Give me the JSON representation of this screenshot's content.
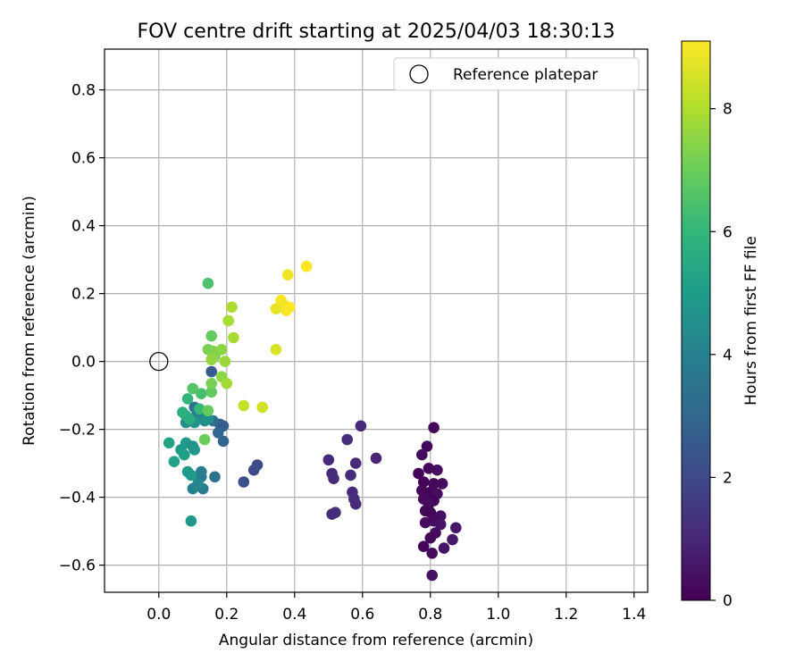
{
  "chart_data": {
    "type": "scatter",
    "title": "FOV centre drift starting at 2025/04/03 18:30:13",
    "xlabel": "Angular distance from reference (arcmin)",
    "ylabel": "Rotation from reference (arcmin)",
    "xlim": [
      -0.16,
      1.44
    ],
    "ylim": [
      -0.68,
      0.92
    ],
    "xticks": [
      0.0,
      0.2,
      0.4,
      0.6,
      0.8,
      1.0,
      1.2,
      1.4
    ],
    "xtick_labels": [
      "0.0",
      "0.2",
      "0.4",
      "0.6",
      "0.8",
      "1.0",
      "1.2",
      "1.4"
    ],
    "yticks": [
      -0.6,
      -0.4,
      -0.2,
      0.0,
      0.2,
      0.4,
      0.6,
      0.8
    ],
    "ytick_labels": [
      "−0.6",
      "−0.4",
      "−0.2",
      "0.0",
      "0.2",
      "0.4",
      "0.6",
      "0.8"
    ],
    "grid": true,
    "legend": {
      "placement": "top-right",
      "label": "Reference platepar"
    },
    "reference": {
      "x": 0.0,
      "y": 0.0
    },
    "colorbar": {
      "label": "Hours from first FF file",
      "colormap": "viridis",
      "range": [
        0,
        9.1
      ],
      "ticks": [
        0,
        2,
        4,
        6,
        8
      ],
      "tick_labels": [
        "0",
        "2",
        "4",
        "6",
        "8"
      ]
    },
    "points": [
      {
        "x": 0.81,
        "y": -0.195,
        "t": 0.2
      },
      {
        "x": 0.79,
        "y": -0.25,
        "t": 0.2
      },
      {
        "x": 0.775,
        "y": -0.275,
        "t": 0.3
      },
      {
        "x": 0.765,
        "y": -0.33,
        "t": 0.1
      },
      {
        "x": 0.795,
        "y": -0.315,
        "t": 0.2
      },
      {
        "x": 0.82,
        "y": -0.32,
        "t": 0.3
      },
      {
        "x": 0.78,
        "y": -0.355,
        "t": 0.1
      },
      {
        "x": 0.81,
        "y": -0.36,
        "t": 0.2
      },
      {
        "x": 0.835,
        "y": -0.36,
        "t": 0.3
      },
      {
        "x": 0.775,
        "y": -0.38,
        "t": 0.2
      },
      {
        "x": 0.8,
        "y": -0.385,
        "t": 0.1
      },
      {
        "x": 0.82,
        "y": -0.39,
        "t": 0.3
      },
      {
        "x": 0.78,
        "y": -0.405,
        "t": 0.2
      },
      {
        "x": 0.81,
        "y": -0.41,
        "t": 0.1
      },
      {
        "x": 0.795,
        "y": -0.42,
        "t": 0.3
      },
      {
        "x": 0.785,
        "y": -0.44,
        "t": 0.2
      },
      {
        "x": 0.8,
        "y": -0.445,
        "t": 0.1
      },
      {
        "x": 0.83,
        "y": -0.455,
        "t": 0.4
      },
      {
        "x": 0.785,
        "y": -0.475,
        "t": 0.3
      },
      {
        "x": 0.81,
        "y": -0.47,
        "t": 0.2
      },
      {
        "x": 0.83,
        "y": -0.48,
        "t": 0.5
      },
      {
        "x": 0.815,
        "y": -0.505,
        "t": 0.3
      },
      {
        "x": 0.875,
        "y": -0.49,
        "t": 0.6
      },
      {
        "x": 0.8,
        "y": -0.52,
        "t": 0.2
      },
      {
        "x": 0.865,
        "y": -0.525,
        "t": 0.6
      },
      {
        "x": 0.78,
        "y": -0.545,
        "t": 0.1
      },
      {
        "x": 0.84,
        "y": -0.55,
        "t": 0.5
      },
      {
        "x": 0.805,
        "y": -0.565,
        "t": 0.2
      },
      {
        "x": 0.805,
        "y": -0.63,
        "t": 0.4
      },
      {
        "x": 0.595,
        "y": -0.19,
        "t": 1.0
      },
      {
        "x": 0.555,
        "y": -0.23,
        "t": 1.2
      },
      {
        "x": 0.64,
        "y": -0.285,
        "t": 0.9
      },
      {
        "x": 0.5,
        "y": -0.29,
        "t": 1.0
      },
      {
        "x": 0.58,
        "y": -0.3,
        "t": 1.1
      },
      {
        "x": 0.51,
        "y": -0.33,
        "t": 1.0
      },
      {
        "x": 0.565,
        "y": -0.335,
        "t": 1.2
      },
      {
        "x": 0.515,
        "y": -0.345,
        "t": 1.1
      },
      {
        "x": 0.57,
        "y": -0.385,
        "t": 1.0
      },
      {
        "x": 0.575,
        "y": -0.405,
        "t": 1.2
      },
      {
        "x": 0.58,
        "y": -0.42,
        "t": 1.1
      },
      {
        "x": 0.52,
        "y": -0.445,
        "t": 1.3
      },
      {
        "x": 0.51,
        "y": -0.45,
        "t": 1.2
      },
      {
        "x": 0.29,
        "y": -0.305,
        "t": 2.0
      },
      {
        "x": 0.28,
        "y": -0.32,
        "t": 2.1
      },
      {
        "x": 0.25,
        "y": -0.355,
        "t": 2.2
      },
      {
        "x": 0.155,
        "y": -0.03,
        "t": 2.6
      },
      {
        "x": 0.18,
        "y": -0.185,
        "t": 2.8
      },
      {
        "x": 0.19,
        "y": -0.19,
        "t": 2.7
      },
      {
        "x": 0.175,
        "y": -0.21,
        "t": 3.0
      },
      {
        "x": 0.19,
        "y": -0.235,
        "t": 2.9
      },
      {
        "x": 0.16,
        "y": -0.175,
        "t": 3.3
      },
      {
        "x": 0.165,
        "y": -0.34,
        "t": 3.4
      },
      {
        "x": 0.125,
        "y": -0.34,
        "t": 3.6
      },
      {
        "x": 0.125,
        "y": -0.325,
        "t": 3.8
      },
      {
        "x": 0.13,
        "y": -0.375,
        "t": 3.7
      },
      {
        "x": 0.1,
        "y": -0.375,
        "t": 4.0
      },
      {
        "x": 0.115,
        "y": -0.36,
        "t": 4.2
      },
      {
        "x": 0.105,
        "y": -0.135,
        "t": 3.5
      },
      {
        "x": 0.11,
        "y": -0.16,
        "t": 3.9
      },
      {
        "x": 0.12,
        "y": -0.165,
        "t": 4.1
      },
      {
        "x": 0.135,
        "y": -0.175,
        "t": 4.4
      },
      {
        "x": 0.145,
        "y": -0.17,
        "t": 4.6
      },
      {
        "x": 0.095,
        "y": -0.47,
        "t": 4.8
      },
      {
        "x": 0.08,
        "y": -0.18,
        "t": 4.5
      },
      {
        "x": 0.105,
        "y": -0.18,
        "t": 4.7
      },
      {
        "x": 0.08,
        "y": -0.24,
        "t": 4.9
      },
      {
        "x": 0.1,
        "y": -0.25,
        "t": 4.6
      },
      {
        "x": 0.105,
        "y": -0.26,
        "t": 4.8
      },
      {
        "x": 0.065,
        "y": -0.26,
        "t": 5.0
      },
      {
        "x": 0.075,
        "y": -0.275,
        "t": 5.1
      },
      {
        "x": 0.045,
        "y": -0.295,
        "t": 5.2
      },
      {
        "x": 0.085,
        "y": -0.325,
        "t": 5.0
      },
      {
        "x": 0.095,
        "y": -0.335,
        "t": 4.9
      },
      {
        "x": 0.03,
        "y": -0.24,
        "t": 5.3
      },
      {
        "x": 0.08,
        "y": -0.16,
        "t": 5.5
      },
      {
        "x": 0.09,
        "y": -0.17,
        "t": 5.6
      },
      {
        "x": 0.07,
        "y": -0.15,
        "t": 5.7
      },
      {
        "x": 0.12,
        "y": -0.14,
        "t": 6.1
      },
      {
        "x": 0.085,
        "y": -0.11,
        "t": 6.0
      },
      {
        "x": 0.125,
        "y": -0.095,
        "t": 6.4
      },
      {
        "x": 0.1,
        "y": -0.08,
        "t": 6.6
      },
      {
        "x": 0.155,
        "y": -0.09,
        "t": 6.8
      },
      {
        "x": 0.135,
        "y": -0.23,
        "t": 7.0
      },
      {
        "x": 0.145,
        "y": -0.145,
        "t": 6.9
      },
      {
        "x": 0.145,
        "y": 0.23,
        "t": 6.5
      },
      {
        "x": 0.155,
        "y": 0.075,
        "t": 6.9
      },
      {
        "x": 0.145,
        "y": 0.035,
        "t": 7.2
      },
      {
        "x": 0.16,
        "y": 0.03,
        "t": 7.3
      },
      {
        "x": 0.185,
        "y": 0.035,
        "t": 7.5
      },
      {
        "x": 0.165,
        "y": 0.015,
        "t": 7.4
      },
      {
        "x": 0.155,
        "y": 0.005,
        "t": 7.6
      },
      {
        "x": 0.195,
        "y": 0.0,
        "t": 7.7
      },
      {
        "x": 0.185,
        "y": -0.045,
        "t": 7.5
      },
      {
        "x": 0.155,
        "y": -0.065,
        "t": 7.2
      },
      {
        "x": 0.2,
        "y": -0.065,
        "t": 7.8
      },
      {
        "x": 0.205,
        "y": 0.12,
        "t": 7.9
      },
      {
        "x": 0.215,
        "y": 0.16,
        "t": 8.0
      },
      {
        "x": 0.22,
        "y": 0.07,
        "t": 7.9
      },
      {
        "x": 0.25,
        "y": -0.13,
        "t": 8.3
      },
      {
        "x": 0.305,
        "y": -0.135,
        "t": 8.5
      },
      {
        "x": 0.345,
        "y": 0.035,
        "t": 8.6
      },
      {
        "x": 0.345,
        "y": 0.155,
        "t": 8.8
      },
      {
        "x": 0.36,
        "y": 0.18,
        "t": 9.0
      },
      {
        "x": 0.37,
        "y": 0.165,
        "t": 8.9
      },
      {
        "x": 0.375,
        "y": 0.15,
        "t": 9.0
      },
      {
        "x": 0.385,
        "y": 0.16,
        "t": 9.1
      },
      {
        "x": 0.38,
        "y": 0.255,
        "t": 8.9
      },
      {
        "x": 0.435,
        "y": 0.28,
        "t": 9.1
      }
    ]
  }
}
